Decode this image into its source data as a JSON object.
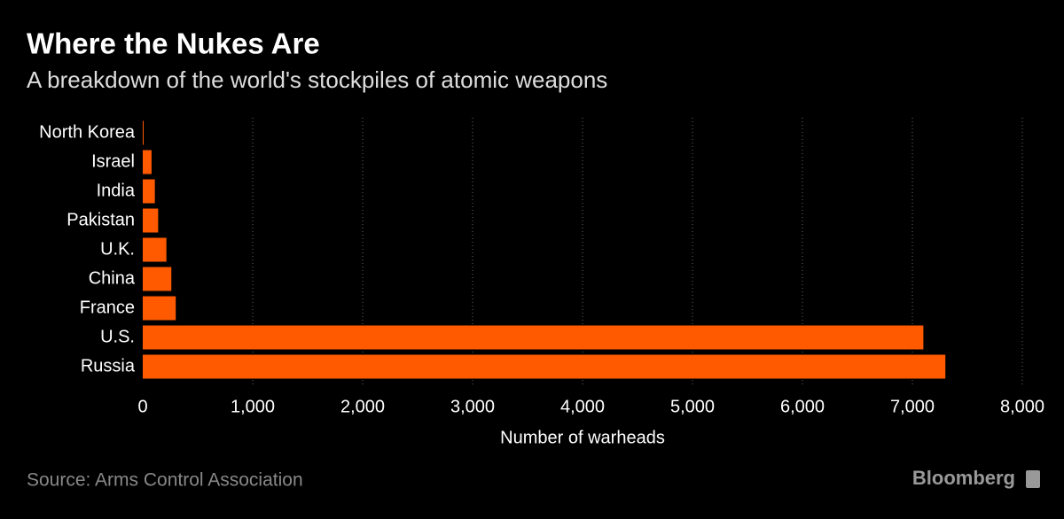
{
  "chart_data": {
    "type": "bar",
    "orientation": "horizontal",
    "title": "Where the Nukes Are",
    "subtitle": "A breakdown of the world's stockpiles of atomic weapons",
    "categories": [
      "North Korea",
      "Israel",
      "India",
      "Pakistan",
      "U.K.",
      "China",
      "France",
      "U.S.",
      "Russia"
    ],
    "values": [
      8,
      80,
      110,
      140,
      215,
      260,
      300,
      7100,
      7300
    ],
    "color": "#ff5a00",
    "xlim": [
      0,
      8000
    ],
    "xticks": [
      0,
      {
        "value": 1000,
        "label": "1,000"
      },
      {
        "value": 2000,
        "label": "2,000"
      },
      {
        "value": 3000,
        "label": "3,000"
      },
      {
        "value": 4000,
        "label": "4,000"
      },
      {
        "value": 5000,
        "label": "5,000"
      },
      {
        "value": 6000,
        "label": "6,000"
      },
      {
        "value": 7000,
        "label": "7,000"
      },
      {
        "value": 8000,
        "label": "8,000"
      }
    ],
    "xlabel": "Number of warheads",
    "grid": true,
    "source": "Source: Arms Control Association",
    "brand": "Bloomberg"
  }
}
